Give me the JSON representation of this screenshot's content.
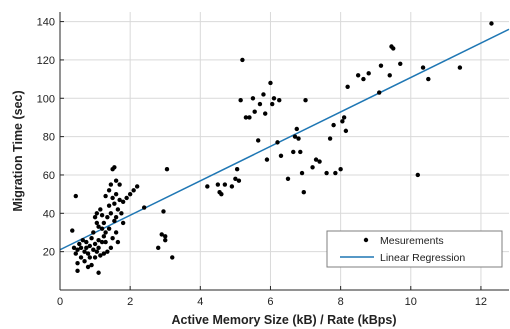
{
  "chart_data": {
    "type": "scatter",
    "xlabel": "Active Memory Size (kB) / Rate (kBps)",
    "ylabel": "Migration Time (sec)",
    "xlim": [
      0,
      12.8
    ],
    "ylim": [
      0,
      145
    ],
    "xticks": [
      0,
      2,
      4,
      6,
      8,
      10,
      12
    ],
    "yticks": [
      20,
      40,
      60,
      80,
      100,
      120,
      140
    ],
    "grid": true,
    "legend_position": "bottom-right",
    "colors": {
      "points": "#000000",
      "regression": "#1f77b4",
      "grid": "#d9d9d9",
      "axis": "#262626"
    },
    "series": [
      {
        "name": "Mesurements",
        "kind": "scatter",
        "points": [
          [
            0.35,
            31
          ],
          [
            0.4,
            22
          ],
          [
            0.45,
            49
          ],
          [
            0.45,
            19
          ],
          [
            0.5,
            14
          ],
          [
            0.5,
            10
          ],
          [
            0.5,
            21
          ],
          [
            0.55,
            24
          ],
          [
            0.6,
            17
          ],
          [
            0.6,
            22
          ],
          [
            0.65,
            26
          ],
          [
            0.7,
            20
          ],
          [
            0.7,
            15
          ],
          [
            0.75,
            22
          ],
          [
            0.75,
            25
          ],
          [
            0.8,
            12
          ],
          [
            0.8,
            19
          ],
          [
            0.85,
            17
          ],
          [
            0.85,
            23
          ],
          [
            0.9,
            27
          ],
          [
            0.9,
            13
          ],
          [
            0.95,
            21
          ],
          [
            0.95,
            30
          ],
          [
            1.0,
            17
          ],
          [
            1.0,
            38
          ],
          [
            1.0,
            24
          ],
          [
            1.05,
            20
          ],
          [
            1.05,
            35
          ],
          [
            1.05,
            40
          ],
          [
            1.1,
            26
          ],
          [
            1.1,
            33
          ],
          [
            1.1,
            22
          ],
          [
            1.1,
            9
          ],
          [
            1.15,
            18
          ],
          [
            1.15,
            42
          ],
          [
            1.2,
            25
          ],
          [
            1.2,
            39
          ],
          [
            1.2,
            32
          ],
          [
            1.25,
            19
          ],
          [
            1.25,
            28
          ],
          [
            1.25,
            35
          ],
          [
            1.3,
            49
          ],
          [
            1.3,
            25
          ],
          [
            1.3,
            30
          ],
          [
            1.35,
            20
          ],
          [
            1.35,
            38
          ],
          [
            1.4,
            52
          ],
          [
            1.4,
            44
          ],
          [
            1.4,
            32
          ],
          [
            1.45,
            55
          ],
          [
            1.45,
            40
          ],
          [
            1.45,
            22
          ],
          [
            1.5,
            63
          ],
          [
            1.5,
            48
          ],
          [
            1.5,
            27
          ],
          [
            1.55,
            64
          ],
          [
            1.55,
            45
          ],
          [
            1.55,
            36
          ],
          [
            1.6,
            57
          ],
          [
            1.6,
            50
          ],
          [
            1.6,
            38
          ],
          [
            1.6,
            30
          ],
          [
            1.65,
            42
          ],
          [
            1.65,
            25
          ],
          [
            1.7,
            47
          ],
          [
            1.7,
            55
          ],
          [
            1.75,
            40
          ],
          [
            1.8,
            35
          ],
          [
            1.8,
            46
          ],
          [
            1.9,
            48
          ],
          [
            2.0,
            50
          ],
          [
            2.1,
            52
          ],
          [
            2.2,
            54
          ],
          [
            2.4,
            43
          ],
          [
            2.8,
            22
          ],
          [
            2.9,
            29
          ],
          [
            2.95,
            41
          ],
          [
            3.0,
            28
          ],
          [
            3.0,
            26
          ],
          [
            3.05,
            63
          ],
          [
            3.2,
            17
          ],
          [
            4.2,
            54
          ],
          [
            4.5,
            55
          ],
          [
            4.55,
            51
          ],
          [
            4.6,
            50
          ],
          [
            4.7,
            55
          ],
          [
            4.9,
            54
          ],
          [
            5.0,
            58
          ],
          [
            5.05,
            63
          ],
          [
            5.1,
            57
          ],
          [
            5.15,
            99
          ],
          [
            5.2,
            120
          ],
          [
            5.3,
            90
          ],
          [
            5.4,
            90
          ],
          [
            5.5,
            100
          ],
          [
            5.55,
            93
          ],
          [
            5.65,
            78
          ],
          [
            5.7,
            97
          ],
          [
            5.8,
            102
          ],
          [
            5.85,
            92
          ],
          [
            5.9,
            68
          ],
          [
            6.0,
            108
          ],
          [
            6.05,
            97
          ],
          [
            6.1,
            100
          ],
          [
            6.2,
            77
          ],
          [
            6.25,
            99
          ],
          [
            6.3,
            70
          ],
          [
            6.5,
            58
          ],
          [
            6.65,
            72
          ],
          [
            6.7,
            80
          ],
          [
            6.75,
            84
          ],
          [
            6.8,
            79
          ],
          [
            6.85,
            72
          ],
          [
            6.9,
            61
          ],
          [
            6.95,
            51
          ],
          [
            7.0,
            99
          ],
          [
            7.2,
            64
          ],
          [
            7.3,
            68
          ],
          [
            7.4,
            67
          ],
          [
            7.6,
            61
          ],
          [
            7.7,
            79
          ],
          [
            7.8,
            86
          ],
          [
            7.85,
            61
          ],
          [
            8.0,
            63
          ],
          [
            8.05,
            88
          ],
          [
            8.1,
            90
          ],
          [
            8.15,
            83
          ],
          [
            8.2,
            106
          ],
          [
            8.5,
            112
          ],
          [
            8.65,
            110
          ],
          [
            8.8,
            113
          ],
          [
            9.1,
            103
          ],
          [
            9.15,
            117
          ],
          [
            9.4,
            112
          ],
          [
            9.45,
            127
          ],
          [
            9.5,
            126
          ],
          [
            9.7,
            118
          ],
          [
            10.2,
            60
          ],
          [
            10.35,
            116
          ],
          [
            10.5,
            110
          ],
          [
            11.4,
            116
          ],
          [
            12.3,
            139
          ]
        ]
      },
      {
        "name": "Linear Regression",
        "kind": "line",
        "points": [
          [
            0,
            21
          ],
          [
            12.8,
            136
          ]
        ]
      }
    ]
  }
}
